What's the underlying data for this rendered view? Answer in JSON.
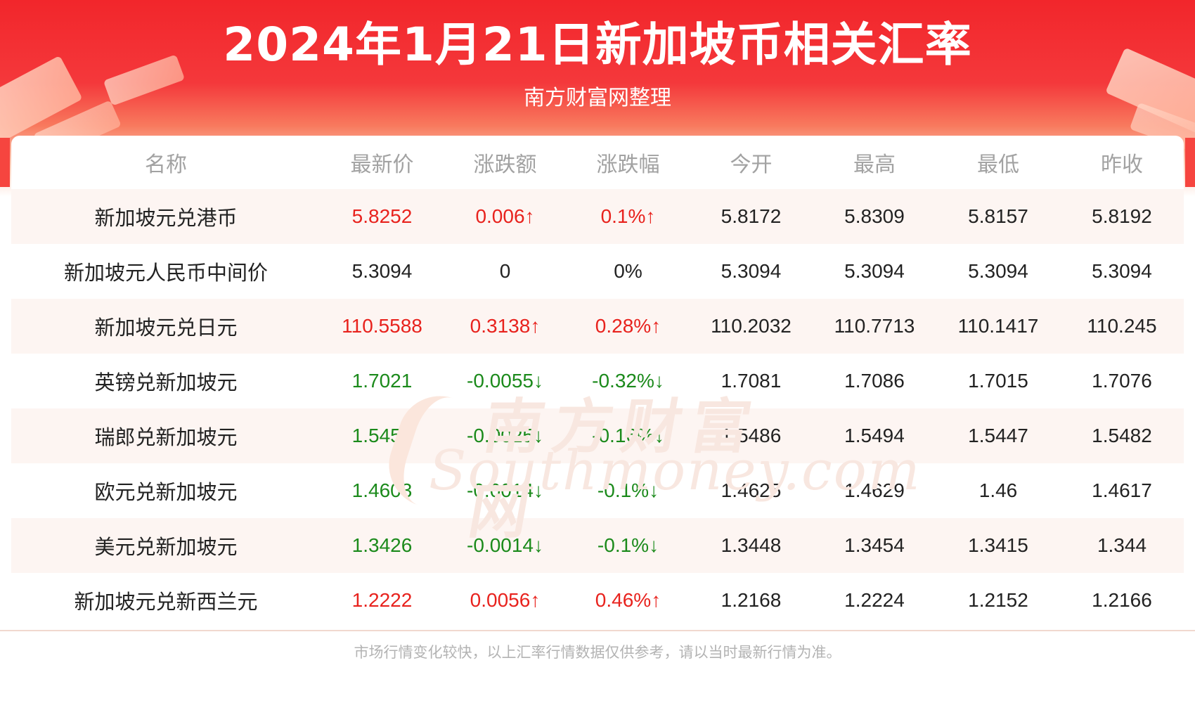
{
  "header": {
    "title": "2024年1月21日新加坡币相关汇率",
    "subtitle": "南方财富网整理"
  },
  "table": {
    "columns": [
      "名称",
      "最新价",
      "涨跌额",
      "涨跌幅",
      "今开",
      "最高",
      "最低",
      "昨收"
    ],
    "rows": [
      {
        "name": "新加坡元兑港币",
        "latest": "5.8252",
        "change": "0.006↑",
        "change_pct": "0.1%↑",
        "open": "5.8172",
        "high": "5.8309",
        "low": "5.8157",
        "prev_close": "5.8192",
        "trend": "up"
      },
      {
        "name": "新加坡元人民币中间价",
        "latest": "5.3094",
        "change": "0",
        "change_pct": "0%",
        "open": "5.3094",
        "high": "5.3094",
        "low": "5.3094",
        "prev_close": "5.3094",
        "trend": "flat"
      },
      {
        "name": "新加坡元兑日元",
        "latest": "110.5588",
        "change": "0.3138↑",
        "change_pct": "0.28%↑",
        "open": "110.2032",
        "high": "110.7713",
        "low": "110.1417",
        "prev_close": "110.245",
        "trend": "up"
      },
      {
        "name": "英镑兑新加坡元",
        "latest": "1.7021",
        "change": "-0.0055↓",
        "change_pct": "-0.32%↓",
        "open": "1.7081",
        "high": "1.7086",
        "low": "1.7015",
        "prev_close": "1.7076",
        "trend": "down"
      },
      {
        "name": "瑞郎兑新加坡元",
        "latest": "1.5457",
        "change": "-0.0025↓",
        "change_pct": "-0.16%↓",
        "open": "1.5486",
        "high": "1.5494",
        "low": "1.5447",
        "prev_close": "1.5482",
        "trend": "down"
      },
      {
        "name": "欧元兑新加坡元",
        "latest": "1.4603",
        "change": "-0.0014↓",
        "change_pct": "-0.1%↓",
        "open": "1.4625",
        "high": "1.4629",
        "low": "1.46",
        "prev_close": "1.4617",
        "trend": "down"
      },
      {
        "name": "美元兑新加坡元",
        "latest": "1.3426",
        "change": "-0.0014↓",
        "change_pct": "-0.1%↓",
        "open": "1.3448",
        "high": "1.3454",
        "low": "1.3415",
        "prev_close": "1.344",
        "trend": "down"
      },
      {
        "name": "新加坡元兑新西兰元",
        "latest": "1.2222",
        "change": "0.0056↑",
        "change_pct": "0.46%↑",
        "open": "1.2168",
        "high": "1.2224",
        "low": "1.2152",
        "prev_close": "1.2166",
        "trend": "up"
      }
    ]
  },
  "watermark": {
    "cn": "南方财富网",
    "en": "Southmoney.com"
  },
  "footer": {
    "disclaimer": "市场行情变化较快，以上汇率行情数据仅供参考，请以当时最新行情为准。"
  },
  "colors": {
    "brand_red": "#f2262b",
    "up": "#e8221d",
    "down": "#1b8a1b",
    "row_alt": "#fdf5f2",
    "header_text": "#a2a2a2"
  }
}
